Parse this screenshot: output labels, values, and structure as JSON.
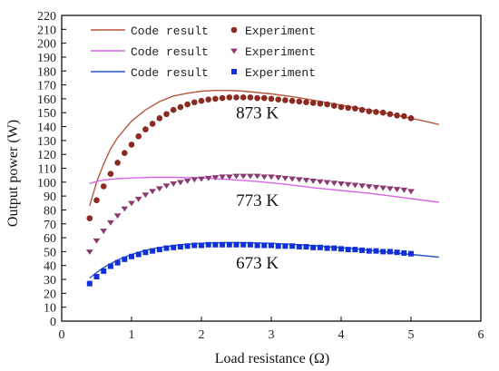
{
  "chart_data": {
    "type": "line",
    "title": "",
    "xlabel": "Load resistance (Ω)",
    "ylabel": "Output power (W)",
    "xlim": [
      0,
      6
    ],
    "ylim": [
      0,
      220
    ],
    "x_ticks": [
      0,
      1,
      2,
      3,
      4,
      5,
      6
    ],
    "y_ticks": [
      0,
      10,
      20,
      30,
      40,
      50,
      60,
      70,
      80,
      90,
      100,
      110,
      120,
      130,
      140,
      150,
      160,
      170,
      180,
      190,
      200,
      210,
      220
    ],
    "grid": false,
    "legend_position": "top-left",
    "legend": [
      {
        "line_label": "Code result",
        "marker_label": "Experiment",
        "line_color": "#b5563d",
        "marker_color": "#8b2a20",
        "marker": "circle"
      },
      {
        "line_label": "Code result",
        "marker_label": "Experiment",
        "line_color": "#d766e6",
        "marker_color": "#8a3a70",
        "marker": "triangle-down"
      },
      {
        "line_label": "Code result",
        "marker_label": "Experiment",
        "line_color": "#2f54c8",
        "marker_color": "#1030d8",
        "marker": "square"
      }
    ],
    "annotations": [
      {
        "text": "873 K",
        "x": 2.8,
        "y": 146
      },
      {
        "text": "773 K",
        "x": 2.8,
        "y": 83
      },
      {
        "text": "673 K",
        "x": 2.8,
        "y": 38
      }
    ],
    "series": [
      {
        "kind": "line",
        "color": "#b5563d",
        "x": [
          0.4,
          0.5,
          0.6,
          0.7,
          0.8,
          1.0,
          1.2,
          1.4,
          1.6,
          1.8,
          2.0,
          2.2,
          2.4,
          2.6,
          2.8,
          3.0,
          3.3,
          3.6,
          4.0,
          4.4,
          4.8,
          5.1,
          5.4
        ],
        "y": [
          83,
          100,
          113,
          124,
          132,
          144,
          152,
          158,
          162,
          164,
          165.5,
          166,
          166,
          165.5,
          164.5,
          163.5,
          161.5,
          159,
          155.5,
          152,
          148,
          145,
          141.5
        ]
      },
      {
        "kind": "scatter",
        "marker": "circle",
        "color": "#8b2a20",
        "x": [
          0.4,
          0.5,
          0.6,
          0.7,
          0.8,
          0.9,
          1.0,
          1.1,
          1.2,
          1.3,
          1.4,
          1.5,
          1.6,
          1.7,
          1.8,
          1.9,
          2.0,
          2.1,
          2.2,
          2.3,
          2.4,
          2.5,
          2.6,
          2.7,
          2.8,
          2.9,
          3.0,
          3.1,
          3.2,
          3.3,
          3.4,
          3.5,
          3.6,
          3.7,
          3.8,
          3.9,
          4.0,
          4.1,
          4.2,
          4.3,
          4.4,
          4.5,
          4.6,
          4.7,
          4.8,
          4.9,
          5.0
        ],
        "y": [
          74,
          87,
          97,
          106,
          114,
          121,
          127,
          133,
          138,
          142,
          146,
          149,
          152,
          154,
          156,
          157.5,
          158.5,
          159.5,
          160,
          160.5,
          161,
          161,
          161,
          161,
          160.5,
          160.5,
          160,
          159.5,
          159,
          158.5,
          158,
          157.5,
          157,
          156.5,
          156,
          155,
          154,
          153.5,
          153,
          152,
          151,
          150.5,
          150,
          149,
          148,
          147.5,
          146
        ]
      },
      {
        "kind": "line",
        "color": "#d766e6",
        "x": [
          0.4,
          0.5,
          0.6,
          0.8,
          1.0,
          1.3,
          1.6,
          2.0,
          2.4,
          2.8,
          3.2,
          3.6,
          4.0,
          4.4,
          4.8,
          5.1,
          5.4
        ],
        "y": [
          99,
          100.5,
          101.5,
          102.5,
          103,
          103.5,
          103.5,
          103,
          102,
          100.5,
          98.5,
          96,
          94,
          92,
          89.5,
          87.5,
          85.5
        ]
      },
      {
        "kind": "scatter",
        "marker": "triangle-down",
        "color": "#8a3a70",
        "x": [
          0.4,
          0.5,
          0.6,
          0.7,
          0.8,
          0.9,
          1.0,
          1.1,
          1.2,
          1.3,
          1.4,
          1.5,
          1.6,
          1.7,
          1.8,
          1.9,
          2.0,
          2.1,
          2.2,
          2.3,
          2.4,
          2.5,
          2.6,
          2.7,
          2.8,
          2.9,
          3.0,
          3.1,
          3.2,
          3.3,
          3.4,
          3.5,
          3.6,
          3.7,
          3.8,
          3.9,
          4.0,
          4.1,
          4.2,
          4.3,
          4.4,
          4.5,
          4.6,
          4.7,
          4.8,
          4.9,
          5.0
        ],
        "y": [
          50,
          58,
          65,
          71,
          76,
          81,
          85,
          88,
          91,
          93.5,
          95.5,
          97.5,
          99,
          100,
          101,
          102,
          102.5,
          103,
          103.5,
          104,
          104,
          104.5,
          104.5,
          104.5,
          104.5,
          104,
          104,
          103.5,
          103,
          102.5,
          102,
          101.5,
          101,
          100.5,
          100,
          99.5,
          99,
          98.5,
          98,
          97.5,
          97,
          96.5,
          96,
          95.5,
          95,
          94.5,
          93.5
        ]
      },
      {
        "kind": "line",
        "color": "#2f54c8",
        "x": [
          0.4,
          0.5,
          0.6,
          0.8,
          1.0,
          1.2,
          1.4,
          1.7,
          2.0,
          2.3,
          2.6,
          3.0,
          3.4,
          3.8,
          4.2,
          4.6,
          5.0,
          5.4
        ],
        "y": [
          31,
          35,
          38.5,
          44,
          48,
          51,
          53,
          55,
          56,
          56.5,
          56.5,
          56,
          55,
          53.5,
          52,
          50,
          48,
          46
        ]
      },
      {
        "kind": "scatter",
        "marker": "square",
        "color": "#1030d8",
        "x": [
          0.4,
          0.5,
          0.6,
          0.7,
          0.8,
          0.9,
          1.0,
          1.1,
          1.2,
          1.3,
          1.4,
          1.5,
          1.6,
          1.7,
          1.8,
          1.9,
          2.0,
          2.1,
          2.2,
          2.3,
          2.4,
          2.5,
          2.6,
          2.7,
          2.8,
          2.9,
          3.0,
          3.1,
          3.2,
          3.3,
          3.4,
          3.5,
          3.6,
          3.7,
          3.8,
          3.9,
          4.0,
          4.1,
          4.2,
          4.3,
          4.4,
          4.5,
          4.6,
          4.7,
          4.8,
          4.9,
          5.0
        ],
        "y": [
          27,
          32,
          36,
          39.5,
          42,
          44.5,
          46.5,
          48,
          49.5,
          50.5,
          51.5,
          52.5,
          53,
          53.5,
          54,
          54.5,
          54.5,
          55,
          55,
          55,
          55,
          55,
          55,
          55,
          54.5,
          54.5,
          54.5,
          54,
          54,
          54,
          53.5,
          53.5,
          53,
          53,
          52.5,
          52.5,
          52,
          51.5,
          51.5,
          51,
          50.5,
          50.5,
          50,
          50,
          49.5,
          49,
          48.5
        ]
      }
    ]
  }
}
